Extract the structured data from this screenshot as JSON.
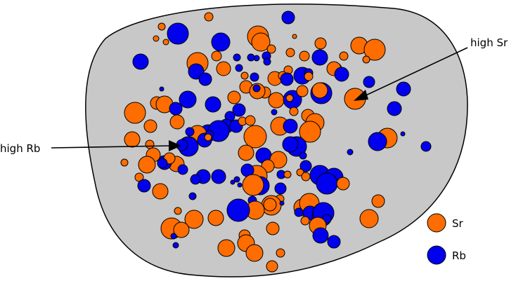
{
  "colors": {
    "region_fill": "#c8c8c8",
    "region_stroke": "#000000",
    "sr": "#ff6d00",
    "rb": "#0000ee",
    "stroke": "#000000"
  },
  "annotations": {
    "high_sr": "high Sr",
    "high_rb": "high Rb"
  },
  "legend": {
    "sr": "Sr",
    "rb": "Rb"
  }
}
